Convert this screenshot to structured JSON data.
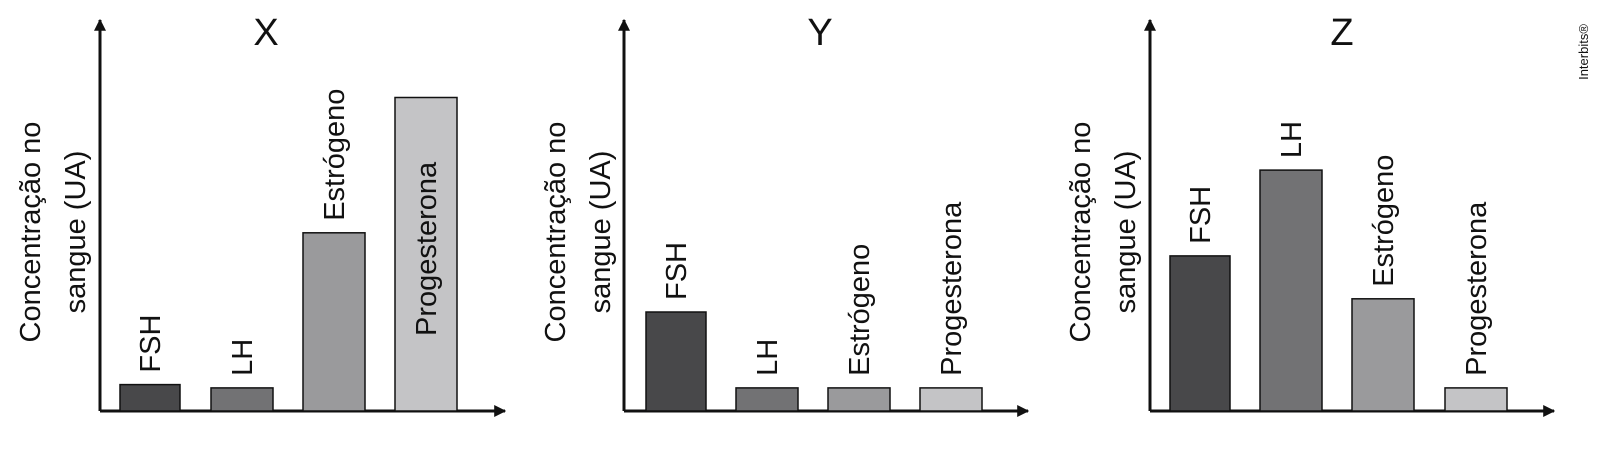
{
  "watermark": "Interbits®",
  "chart_data": [
    {
      "type": "bar",
      "title": "X",
      "ylabel_lines": [
        "Concentração no",
        "sangue (UA)"
      ],
      "categories": [
        "FSH",
        "LH",
        "Estrógeno",
        "Progesterona"
      ],
      "values": [
        8,
        7,
        54,
        95
      ],
      "ylim": [
        0,
        110
      ]
    },
    {
      "type": "bar",
      "title": "Y",
      "ylabel_lines": [
        "Concentração no",
        "sangue (UA)"
      ],
      "categories": [
        "FSH",
        "LH",
        "Estrógeno",
        "Progesterona"
      ],
      "values": [
        30,
        7,
        7,
        7
      ],
      "ylim": [
        0,
        110
      ]
    },
    {
      "type": "bar",
      "title": "Z",
      "ylabel_lines": [
        "Concentração no",
        "sangue (UA)"
      ],
      "categories": [
        "FSH",
        "LH",
        "Estrógeno",
        "Progesterona"
      ],
      "values": [
        47,
        73,
        34,
        7
      ],
      "ylim": [
        0,
        110
      ]
    }
  ],
  "colors": {
    "bars": [
      "#48484a",
      "#727274",
      "#9a9a9c",
      "#c4c4c6"
    ],
    "axis": "#111111",
    "bar_stroke": "#111111"
  }
}
